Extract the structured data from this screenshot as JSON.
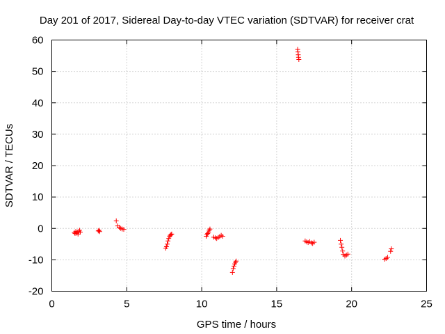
{
  "chart_data": {
    "type": "scatter",
    "title": "Day 201 of 2017, Sidereal Day-to-day VTEC variation (SDTVAR) for receiver crat",
    "xlabel": "GPS time / hours",
    "ylabel": "SDTVAR / TECUs",
    "xlim": [
      0,
      25
    ],
    "ylim": [
      -20,
      60
    ],
    "xticks": [
      0,
      5,
      10,
      15,
      20,
      25
    ],
    "yticks": [
      -20,
      -10,
      0,
      10,
      20,
      30,
      40,
      50,
      60
    ],
    "grid": true,
    "marker": "+",
    "series": [
      {
        "name": "SDTVAR",
        "color": "#ff0000",
        "points": [
          [
            1.5,
            -1.3
          ],
          [
            1.55,
            -1.6
          ],
          [
            1.6,
            -1.0
          ],
          [
            1.65,
            -1.5
          ],
          [
            1.7,
            -1.2
          ],
          [
            1.75,
            -1.8
          ],
          [
            1.8,
            -1.0
          ],
          [
            1.85,
            -0.6
          ],
          [
            1.9,
            -1.2
          ],
          [
            3.1,
            -0.8
          ],
          [
            3.15,
            -0.6
          ],
          [
            3.2,
            -1.0
          ],
          [
            4.3,
            2.4
          ],
          [
            4.4,
            0.8
          ],
          [
            4.5,
            0.3
          ],
          [
            4.6,
            0.0
          ],
          [
            4.7,
            -0.2
          ],
          [
            4.8,
            -0.3
          ],
          [
            7.6,
            -6.3
          ],
          [
            7.65,
            -5.8
          ],
          [
            7.7,
            -5.0
          ],
          [
            7.75,
            -4.0
          ],
          [
            7.8,
            -3.2
          ],
          [
            7.85,
            -2.6
          ],
          [
            7.9,
            -2.2
          ],
          [
            7.95,
            -2.0
          ],
          [
            8.0,
            -1.8
          ],
          [
            10.3,
            -2.5
          ],
          [
            10.35,
            -2.0
          ],
          [
            10.4,
            -1.6
          ],
          [
            10.45,
            -1.2
          ],
          [
            10.5,
            -0.6
          ],
          [
            10.55,
            -0.2
          ],
          [
            10.8,
            -2.8
          ],
          [
            10.9,
            -3.0
          ],
          [
            11.0,
            -3.2
          ],
          [
            11.1,
            -2.9
          ],
          [
            11.2,
            -2.6
          ],
          [
            11.3,
            -2.2
          ],
          [
            11.4,
            -2.5
          ],
          [
            12.05,
            -14.0
          ],
          [
            12.1,
            -12.8
          ],
          [
            12.15,
            -12.0
          ],
          [
            12.2,
            -11.3
          ],
          [
            12.25,
            -10.8
          ],
          [
            12.3,
            -10.4
          ],
          [
            16.4,
            57.0
          ],
          [
            16.42,
            56.2
          ],
          [
            16.44,
            55.3
          ],
          [
            16.46,
            54.5
          ],
          [
            16.48,
            53.8
          ],
          [
            16.9,
            -4.0
          ],
          [
            17.0,
            -4.3
          ],
          [
            17.1,
            -4.5
          ],
          [
            17.2,
            -4.2
          ],
          [
            17.3,
            -4.6
          ],
          [
            17.4,
            -4.8
          ],
          [
            17.5,
            -4.4
          ],
          [
            19.25,
            -3.8
          ],
          [
            19.3,
            -5.0
          ],
          [
            19.35,
            -6.0
          ],
          [
            19.4,
            -7.2
          ],
          [
            19.45,
            -8.3
          ],
          [
            19.55,
            -8.8
          ],
          [
            19.65,
            -8.5
          ],
          [
            19.75,
            -8.2
          ],
          [
            22.2,
            -9.8
          ],
          [
            22.3,
            -9.6
          ],
          [
            22.4,
            -9.2
          ],
          [
            22.6,
            -7.3
          ],
          [
            22.65,
            -6.5
          ]
        ]
      }
    ]
  }
}
